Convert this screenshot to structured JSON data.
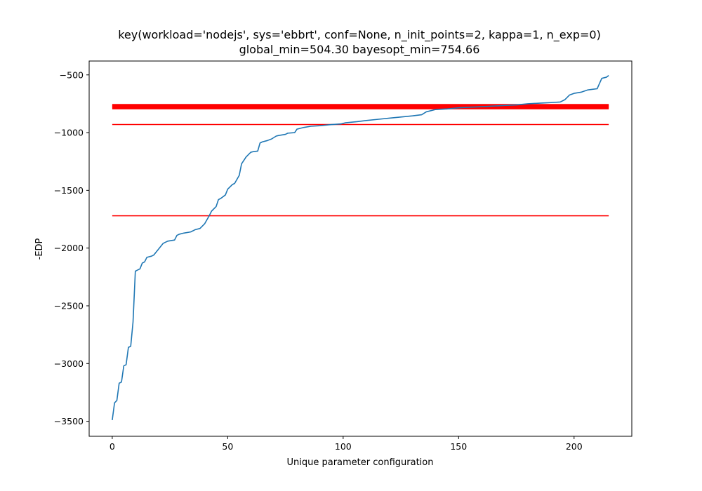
{
  "chart_data": {
    "type": "line",
    "title": "key(workload='nodejs', sys='ebbrt', conf=None, n_init_points=2, kappa=1, n_exp=0)",
    "subtitle": "global_min=504.30 bayesopt_min=754.66",
    "xlabel": "Unique parameter configuration",
    "ylabel": "-EDP",
    "xlim": [
      -10,
      225
    ],
    "ylim": [
      -3630,
      -380
    ],
    "xticks": [
      0,
      50,
      100,
      150,
      200
    ],
    "yticks": [
      -3500,
      -3000,
      -2500,
      -2000,
      -1500,
      -1000,
      -500
    ],
    "grid": false,
    "colors": {
      "line": "#1f77b4",
      "hlines": "#ff0000"
    },
    "hlines": [
      {
        "y": -770,
        "xmin": 0,
        "xmax": 215,
        "style": "thick"
      },
      {
        "y": -780,
        "xmin": 0,
        "xmax": 215,
        "style": "thick"
      },
      {
        "y": -930,
        "xmin": 0,
        "xmax": 215,
        "style": "thin"
      },
      {
        "y": -1720,
        "xmin": 0,
        "xmax": 215,
        "style": "thin"
      }
    ],
    "series": [
      {
        "points": [
          [
            0,
            -3490
          ],
          [
            1,
            -3340
          ],
          [
            2,
            -3320
          ],
          [
            3,
            -3170
          ],
          [
            4,
            -3160
          ],
          [
            5,
            -3020
          ],
          [
            6,
            -3010
          ],
          [
            7,
            -2860
          ],
          [
            8,
            -2850
          ],
          [
            9,
            -2640
          ],
          [
            10,
            -2200
          ],
          [
            11,
            -2190
          ],
          [
            12,
            -2180
          ],
          [
            13,
            -2130
          ],
          [
            14,
            -2120
          ],
          [
            15,
            -2080
          ],
          [
            17,
            -2070
          ],
          [
            18,
            -2060
          ],
          [
            20,
            -2010
          ],
          [
            22,
            -1960
          ],
          [
            24,
            -1940
          ],
          [
            27,
            -1930
          ],
          [
            28,
            -1890
          ],
          [
            29,
            -1880
          ],
          [
            31,
            -1870
          ],
          [
            34,
            -1860
          ],
          [
            36,
            -1840
          ],
          [
            38,
            -1830
          ],
          [
            40,
            -1790
          ],
          [
            42,
            -1720
          ],
          [
            43,
            -1680
          ],
          [
            45,
            -1640
          ],
          [
            46,
            -1580
          ],
          [
            47,
            -1570
          ],
          [
            49,
            -1540
          ],
          [
            50,
            -1490
          ],
          [
            52,
            -1450
          ],
          [
            53,
            -1440
          ],
          [
            55,
            -1370
          ],
          [
            56,
            -1270
          ],
          [
            58,
            -1210
          ],
          [
            59,
            -1190
          ],
          [
            60,
            -1170
          ],
          [
            61,
            -1165
          ],
          [
            63,
            -1160
          ],
          [
            64,
            -1090
          ],
          [
            65,
            -1080
          ],
          [
            67,
            -1070
          ],
          [
            69,
            -1055
          ],
          [
            71,
            -1030
          ],
          [
            72,
            -1025
          ],
          [
            75,
            -1015
          ],
          [
            76,
            -1005
          ],
          [
            79,
            -1000
          ],
          [
            80,
            -970
          ],
          [
            83,
            -955
          ],
          [
            86,
            -945
          ],
          [
            90,
            -940
          ],
          [
            95,
            -930
          ],
          [
            99,
            -925
          ],
          [
            101,
            -915
          ],
          [
            106,
            -905
          ],
          [
            110,
            -895
          ],
          [
            115,
            -885
          ],
          [
            120,
            -875
          ],
          [
            125,
            -865
          ],
          [
            130,
            -855
          ],
          [
            134,
            -845
          ],
          [
            136,
            -820
          ],
          [
            140,
            -800
          ],
          [
            145,
            -795
          ],
          [
            150,
            -785
          ],
          [
            155,
            -780
          ],
          [
            160,
            -775
          ],
          [
            170,
            -765
          ],
          [
            175,
            -760
          ],
          [
            180,
            -750
          ],
          [
            185,
            -745
          ],
          [
            190,
            -740
          ],
          [
            194,
            -735
          ],
          [
            196,
            -715
          ],
          [
            198,
            -675
          ],
          [
            200,
            -660
          ],
          [
            203,
            -650
          ],
          [
            206,
            -630
          ],
          [
            208,
            -625
          ],
          [
            210,
            -620
          ],
          [
            211,
            -575
          ],
          [
            212,
            -530
          ],
          [
            214,
            -520
          ],
          [
            215,
            -505
          ]
        ]
      }
    ]
  }
}
